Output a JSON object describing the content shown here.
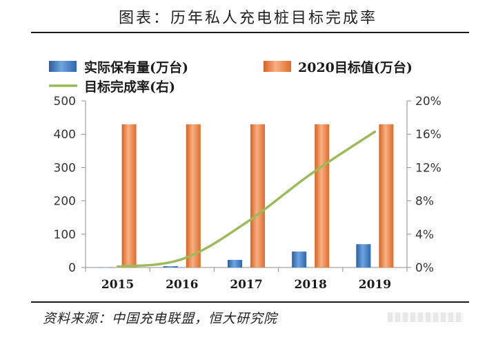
{
  "header": {
    "title": "图表：历年私人充电桩目标完成率"
  },
  "footer": {
    "source": "资料来源：中国充电联盟，恒大研究院"
  },
  "chart_data": {
    "type": "bar",
    "title": "",
    "categories": [
      "2015",
      "2016",
      "2017",
      "2018",
      "2019"
    ],
    "series": [
      {
        "name": "实际保有量(万台)",
        "type": "bar",
        "axis": "left",
        "color": "#3a78c2",
        "values": [
          0.5,
          4,
          23,
          48,
          70
        ]
      },
      {
        "name": "2020目标值(万台)",
        "type": "bar",
        "axis": "left",
        "color": "#e8743b",
        "values": [
          430,
          430,
          430,
          430,
          430
        ]
      },
      {
        "name": "目标完成率(右)",
        "type": "line",
        "axis": "right",
        "color": "#9bbb59",
        "values": [
          0.1,
          1.0,
          5.4,
          11.2,
          16.3
        ]
      }
    ],
    "y_left": {
      "ylim": [
        0,
        500
      ],
      "ticks": [
        "0",
        "100",
        "200",
        "300",
        "400",
        "500"
      ]
    },
    "y_right": {
      "ylim": [
        0,
        20
      ],
      "unit": "%",
      "ticks": [
        "0%",
        "4%",
        "8%",
        "12%",
        "16%",
        "20%"
      ]
    },
    "legend_position": "top",
    "grid": false
  }
}
